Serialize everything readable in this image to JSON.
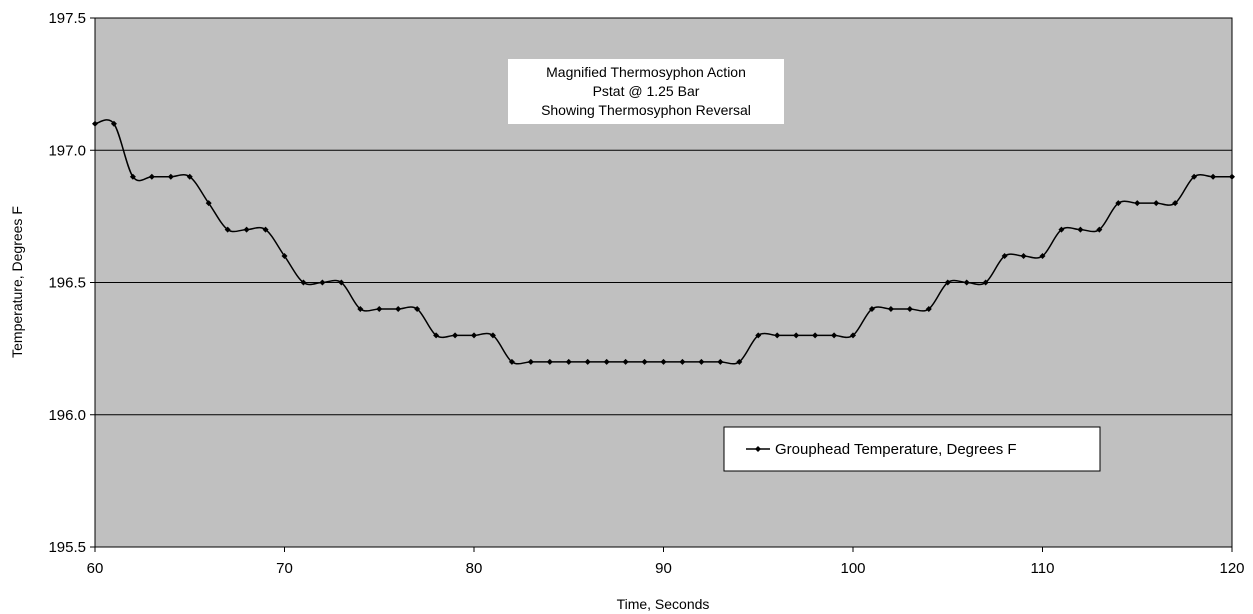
{
  "chart_data": {
    "type": "line",
    "xlabel": "Time, Seconds",
    "ylabel": "Temperature, Degrees F",
    "xlim": [
      60,
      120
    ],
    "ylim": [
      195.5,
      197.5
    ],
    "x_ticks": [
      "60",
      "70",
      "80",
      "90",
      "100",
      "110",
      "120"
    ],
    "y_ticks": [
      "195.5",
      "196.0",
      "196.5",
      "197.0",
      "197.5"
    ],
    "grid": "horizontal",
    "legend_placement": "lower-right",
    "plot_background": "#c0c0c0",
    "annotation_lines": [
      "Magnified Thermosyphon Action",
      "Pstat @ 1.25 Bar",
      "Showing Thermosyphon Reversal"
    ],
    "series": [
      {
        "name": "Grouphead Temperature, Degrees F",
        "color": "#000000",
        "marker": "diamond",
        "x": [
          60,
          61,
          62,
          63,
          64,
          65,
          66,
          67,
          68,
          69,
          70,
          71,
          72,
          73,
          74,
          75,
          76,
          77,
          78,
          79,
          80,
          81,
          82,
          83,
          84,
          85,
          86,
          87,
          88,
          89,
          90,
          91,
          92,
          93,
          94,
          95,
          96,
          97,
          98,
          99,
          100,
          101,
          102,
          103,
          104,
          105,
          106,
          107,
          108,
          109,
          110,
          111,
          112,
          113,
          114,
          115,
          116,
          117,
          118,
          119,
          120
        ],
        "y": [
          197.1,
          197.1,
          196.9,
          196.9,
          196.9,
          196.9,
          196.8,
          196.7,
          196.7,
          196.7,
          196.6,
          196.5,
          196.5,
          196.5,
          196.4,
          196.4,
          196.4,
          196.4,
          196.3,
          196.3,
          196.3,
          196.3,
          196.2,
          196.2,
          196.2,
          196.2,
          196.2,
          196.2,
          196.2,
          196.2,
          196.2,
          196.2,
          196.2,
          196.2,
          196.2,
          196.3,
          196.3,
          196.3,
          196.3,
          196.3,
          196.3,
          196.4,
          196.4,
          196.4,
          196.4,
          196.5,
          196.5,
          196.5,
          196.6,
          196.6,
          196.6,
          196.7,
          196.7,
          196.7,
          196.8,
          196.8,
          196.8,
          196.8,
          196.9,
          196.9,
          196.9
        ]
      }
    ]
  }
}
